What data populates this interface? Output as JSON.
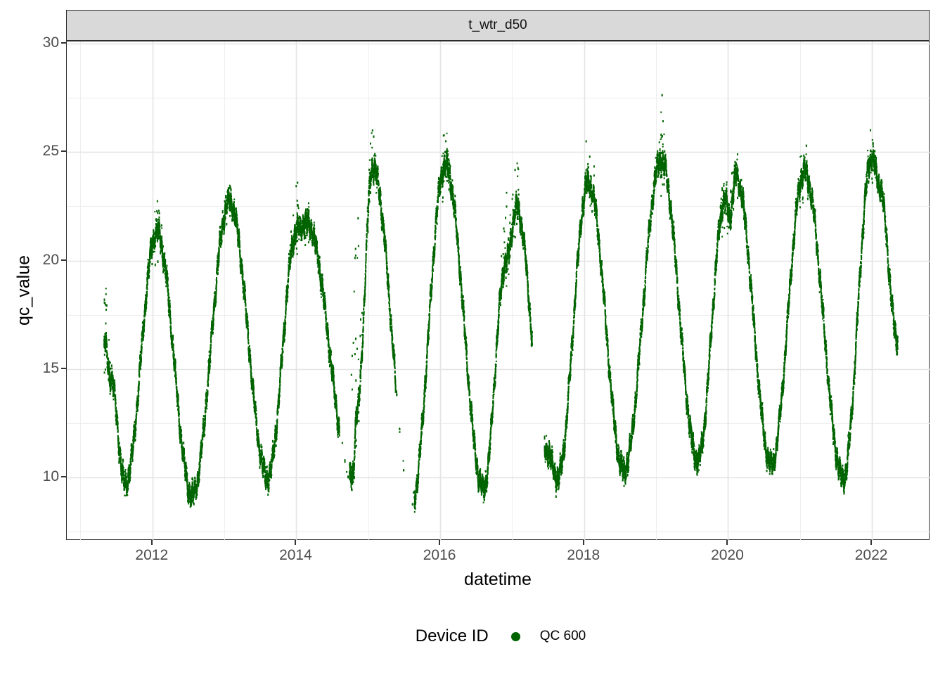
{
  "chart": {
    "facet_label": "t_wtr_d50",
    "xlabel": "datetime",
    "ylabel": "qc_value",
    "legend": {
      "title": "Device ID",
      "items": [
        {
          "label": "QC 600",
          "color": "#006400"
        }
      ]
    }
  },
  "chart_data": {
    "type": "scatter",
    "title": "t_wtr_d50",
    "xlabel": "datetime",
    "ylabel": "qc_value",
    "x_unit": "decimal_year",
    "x_range": [
      2010.81,
      2022.81
    ],
    "y_range": [
      7.08,
      30.1
    ],
    "x_major_ticks": [
      2012,
      2014,
      2016,
      2018,
      2020,
      2022
    ],
    "x_minor_ticks": [
      2011,
      2013,
      2015,
      2017,
      2019,
      2021
    ],
    "y_major_ticks": [
      10,
      15,
      20,
      25,
      30
    ],
    "y_minor_ticks": [
      7.5,
      12.5,
      17.5,
      22.5,
      27.5
    ],
    "grid": true,
    "legend_position": "bottom",
    "facet_label": "t_wtr_d50",
    "series": [
      {
        "name": "QC 600",
        "color": "#006400",
        "description": "Daily median water temperature, seasonal cycle with peaks in austral summer (Jan) and troughs mid-year",
        "seasonal_anchors": [
          {
            "x": 2011.33,
            "y": 16.2,
            "top": 19.6
          },
          {
            "x": 2011.42,
            "y": 14.6
          },
          {
            "x": 2011.62,
            "y": 9.7,
            "min": 8.9
          },
          {
            "x": 2012.06,
            "y": 21.3,
            "top": 22.9
          },
          {
            "x": 2012.55,
            "y": 9.2,
            "min": 8.6
          },
          {
            "x": 2013.07,
            "y": 22.7,
            "top": 24.2
          },
          {
            "x": 2013.6,
            "y": 10.0,
            "min": 9.3
          },
          {
            "x": 2014.01,
            "y": 21.4,
            "top": 24.0
          },
          {
            "x": 2014.15,
            "y": 21.7,
            "top": 22.8
          },
          {
            "x": 2014.78,
            "y": 9.9,
            "min": 9.4
          },
          {
            "x": 2014.84,
            "y": 13.0,
            "top": 24.3
          },
          {
            "x": 2015.06,
            "y": 24.3,
            "top": 26.1
          },
          {
            "x": 2015.6,
            "y": 8.8,
            "min": 8.3
          },
          {
            "x": 2016.07,
            "y": 24.4,
            "top": 26.3
          },
          {
            "x": 2016.6,
            "y": 9.5,
            "min": 8.8
          },
          {
            "x": 2016.92,
            "y": 20.0,
            "top": 23.3
          },
          {
            "x": 2017.06,
            "y": 22.4,
            "top": 24.7
          },
          {
            "x": 2017.47,
            "y": 11.3
          },
          {
            "x": 2017.63,
            "y": 10.0,
            "min": 9.3
          },
          {
            "x": 2018.06,
            "y": 23.6,
            "top": 26.9
          },
          {
            "x": 2018.55,
            "y": 10.3,
            "min": 9.5
          },
          {
            "x": 2019.07,
            "y": 24.6,
            "top": 29.0
          },
          {
            "x": 2019.58,
            "y": 10.8,
            "min": 10.1
          },
          {
            "x": 2019.96,
            "y": 22.8,
            "top": 24.0
          },
          {
            "x": 2020.02,
            "y": 22.0
          },
          {
            "x": 2020.11,
            "y": 23.9,
            "top": 25.6
          },
          {
            "x": 2020.6,
            "y": 10.6,
            "min": 10.1
          },
          {
            "x": 2021.06,
            "y": 24.1,
            "top": 26.3
          },
          {
            "x": 2021.6,
            "y": 10.0,
            "min": 9.3
          },
          {
            "x": 2022.0,
            "y": 24.8,
            "top": 27.5
          },
          {
            "x": 2022.1,
            "y": 23.5
          },
          {
            "x": 2022.36,
            "y": 16.3
          }
        ],
        "gaps": [
          [
            2017.28,
            2017.45
          ]
        ],
        "sparse_ranges": [
          [
            2014.6,
            2014.74
          ],
          [
            2015.38,
            2015.64
          ]
        ]
      }
    ]
  },
  "colors": {
    "point": "#006400",
    "strip_background": "#d9d9d9",
    "panel_border": "#333333",
    "grid_major": "#e4e4e4",
    "grid_minor": "#ececec",
    "tick_text": "#4d4d4d",
    "title_text": "#000000"
  }
}
